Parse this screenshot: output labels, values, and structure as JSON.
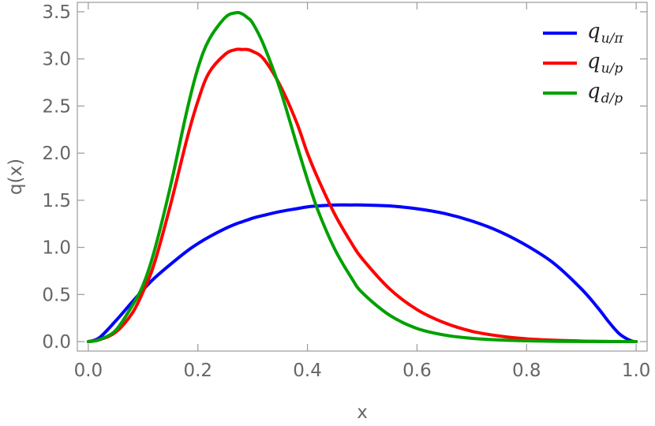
{
  "chart_data": {
    "type": "line",
    "xlabel": "x",
    "ylabel": "q(x)",
    "xlim": [
      -0.02,
      1.02
    ],
    "ylim": [
      -0.1,
      3.6
    ],
    "xticks": [
      0.0,
      0.2,
      0.4,
      0.6,
      0.8,
      1.0
    ],
    "xtick_labels": [
      "0.0",
      "0.2",
      "0.4",
      "0.6",
      "0.8",
      "1.0"
    ],
    "yticks": [
      0.0,
      0.5,
      1.0,
      1.5,
      2.0,
      2.5,
      3.0,
      3.5
    ],
    "ytick_labels": [
      "0.0",
      "0.5",
      "1.0",
      "1.5",
      "2.0",
      "2.5",
      "3.0",
      "3.5"
    ],
    "grid": false,
    "legend_position": "top-right",
    "x": [
      0.0,
      0.02,
      0.05,
      0.08,
      0.1,
      0.12,
      0.15,
      0.18,
      0.2,
      0.22,
      0.25,
      0.27,
      0.28,
      0.29,
      0.3,
      0.32,
      0.35,
      0.38,
      0.4,
      0.42,
      0.45,
      0.48,
      0.5,
      0.55,
      0.6,
      0.65,
      0.7,
      0.75,
      0.8,
      0.85,
      0.9,
      0.93,
      0.95,
      0.97,
      0.99,
      1.0
    ],
    "series": [
      {
        "name": "q",
        "subscript": "u/π",
        "color": "#0000ff",
        "values": [
          0.0,
          0.04,
          0.22,
          0.42,
          0.55,
          0.67,
          0.82,
          0.96,
          1.04,
          1.11,
          1.2,
          1.25,
          1.27,
          1.29,
          1.31,
          1.34,
          1.38,
          1.41,
          1.43,
          1.44,
          1.45,
          1.45,
          1.45,
          1.44,
          1.41,
          1.36,
          1.28,
          1.17,
          1.02,
          0.83,
          0.56,
          0.36,
          0.21,
          0.08,
          0.01,
          0.0
        ]
      },
      {
        "name": "q",
        "subscript": "u/p",
        "color": "#ff0000",
        "values": [
          0.0,
          0.02,
          0.1,
          0.3,
          0.53,
          0.82,
          1.45,
          2.15,
          2.55,
          2.85,
          3.05,
          3.1,
          3.1,
          3.1,
          3.08,
          3.0,
          2.72,
          2.33,
          2.0,
          1.72,
          1.35,
          1.05,
          0.88,
          0.56,
          0.34,
          0.2,
          0.11,
          0.06,
          0.03,
          0.015,
          0.006,
          0.003,
          0.002,
          0.001,
          0.0,
          0.0
        ]
      },
      {
        "name": "q",
        "subscript": "d/p",
        "color": "#00a000",
        "values": [
          0.0,
          0.02,
          0.12,
          0.38,
          0.6,
          0.95,
          1.65,
          2.45,
          2.9,
          3.2,
          3.44,
          3.49,
          3.48,
          3.44,
          3.38,
          3.15,
          2.68,
          2.1,
          1.72,
          1.38,
          0.98,
          0.68,
          0.52,
          0.28,
          0.14,
          0.07,
          0.035,
          0.018,
          0.009,
          0.004,
          0.002,
          0.001,
          0.0,
          0.0,
          0.0,
          0.0
        ]
      }
    ]
  }
}
